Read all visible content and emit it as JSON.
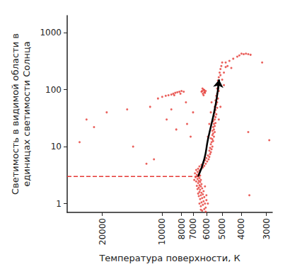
{
  "chart_data": {
    "type": "scatter",
    "x_label": "Температура поверхности, К",
    "y_label": "Светимость в видимой области в\nединицах светимости Солнца",
    "log": true,
    "grid": false,
    "marker": "circle",
    "color": "#e53935",
    "xlim": [
      30000,
      2800
    ],
    "xticks": [
      20000,
      10000,
      8000,
      7000,
      6000,
      5000,
      4000,
      3000
    ],
    "ylim": [
      0.7,
      2000
    ],
    "yticks": [
      1,
      10,
      100,
      1000
    ],
    "x": [
      6300,
      6150,
      6050,
      6400,
      6250,
      6100,
      6500,
      6350,
      6200,
      6000,
      6450,
      6300,
      6150,
      6550,
      6400,
      6250,
      6600,
      6350,
      6500,
      6200,
      6450,
      6650,
      6300,
      6550,
      6400,
      6700,
      6500,
      6350,
      6600,
      6450,
      6750,
      6550,
      6400,
      6650,
      6500,
      6800,
      6600,
      6450,
      6700,
      6550,
      6850,
      6650,
      6500,
      6750,
      5900,
      6000,
      6900,
      6100,
      6050,
      6400,
      6600,
      6400,
      6250,
      6500,
      6150,
      6350,
      6050,
      6200,
      5950,
      6100,
      5850,
      6000,
      5800,
      5900,
      5750,
      5700,
      5800,
      5650,
      5750,
      5600,
      5700,
      5650,
      5550,
      5600,
      5700,
      5500,
      5600,
      5550,
      5450,
      5600,
      5500,
      5550,
      5450,
      5500,
      5400,
      5550,
      5450,
      5400,
      5500,
      5350,
      5450,
      5400,
      5300,
      5450,
      5350,
      5300,
      5400,
      5250,
      5350,
      5300,
      5200,
      5300,
      5250,
      5150,
      5250,
      5200,
      5100,
      5150,
      5100,
      5050,
      5000,
      5900,
      5800,
      5700,
      5650,
      5200,
      5100,
      6250,
      6150,
      6300,
      6200,
      6100,
      6350,
      6200,
      6050,
      6280,
      6150,
      10500,
      10000,
      9600,
      9300,
      9000,
      8800,
      8600,
      8400,
      8200,
      8000,
      7800,
      8100,
      8700,
      24000,
      22000,
      26000,
      19000,
      15000,
      14000,
      12000,
      11000,
      9500,
      8500,
      7500,
      7200,
      7000,
      9000,
      7600,
      11500,
      5000,
      4900,
      4800,
      4600,
      4400,
      4200,
      4100,
      4000,
      3900,
      3800,
      3700,
      3600,
      4800,
      4700,
      4500,
      4900,
      3150,
      3700,
      3650,
      2900
    ],
    "values": [
      0.75,
      0.8,
      0.85,
      0.9,
      0.95,
      1.0,
      1.0,
      1.05,
      1.1,
      1.15,
      1.2,
      1.25,
      1.3,
      1.35,
      1.4,
      1.45,
      1.5,
      1.55,
      1.6,
      1.65,
      1.75,
      1.8,
      1.85,
      1.9,
      2.0,
      2.05,
      2.1,
      2.2,
      2.3,
      2.4,
      2.45,
      2.5,
      2.6,
      2.7,
      2.8,
      2.9,
      3.0,
      3.1,
      3.2,
      3.3,
      3.4,
      3.6,
      3.8,
      3.9,
      1.0,
      1.4,
      2.6,
      2.0,
      0.72,
      0.78,
      4.1,
      4.0,
      4.3,
      4.5,
      4.6,
      4.8,
      5.0,
      5.3,
      5.5,
      5.8,
      6.0,
      6.3,
      6.6,
      7.0,
      7.4,
      8,
      8.5,
      9,
      9.5,
      10,
      11,
      12,
      12.5,
      13.5,
      14,
      15,
      16,
      17,
      18,
      19,
      20,
      22,
      23,
      25,
      26,
      28,
      30,
      33,
      35,
      37,
      40,
      44,
      48,
      50,
      55,
      60,
      65,
      70,
      78,
      85,
      95,
      105,
      120,
      130,
      145,
      165,
      180,
      200,
      230,
      260,
      300,
      15,
      25,
      40,
      60,
      30,
      50,
      85,
      90,
      95,
      100,
      88,
      92,
      80,
      95,
      105,
      98,
      70,
      75,
      78,
      80,
      82,
      85,
      88,
      90,
      92,
      95,
      92,
      85,
      80,
      30,
      22,
      12,
      40,
      45,
      10,
      5,
      6,
      30,
      20,
      25,
      15,
      40,
      45,
      60,
      50,
      150,
      200,
      300,
      320,
      350,
      380,
      400,
      430,
      420,
      430,
      420,
      410,
      250,
      260,
      240,
      120,
      300,
      18,
      1.4,
      13
    ],
    "reference_line": {
      "y": 3.0,
      "x": [
        30000,
        6600
      ],
      "color": "#e53935",
      "line_style": "dashed"
    },
    "arrow": {
      "x": [
        6600,
        6150,
        5890,
        5450,
        5250,
        5180
      ],
      "values": [
        3.0,
        6,
        13.5,
        45,
        100,
        150
      ],
      "color": "#000000",
      "line_style": "solid"
    }
  }
}
